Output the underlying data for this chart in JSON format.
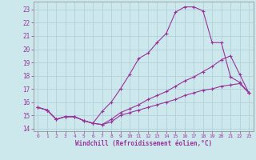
{
  "xlabel": "Windchill (Refroidissement éolien,°C)",
  "bg_color": "#cce8ed",
  "grid_color": "#aacdd5",
  "line_color": "#993399",
  "spine_color": "#888888",
  "xlim": [
    -0.5,
    23.5
  ],
  "ylim": [
    13.8,
    23.6
  ],
  "xticks": [
    0,
    1,
    2,
    3,
    4,
    5,
    6,
    7,
    8,
    9,
    10,
    11,
    12,
    13,
    14,
    15,
    16,
    17,
    18,
    19,
    20,
    21,
    22,
    23
  ],
  "yticks": [
    14,
    15,
    16,
    17,
    18,
    19,
    20,
    21,
    22,
    23
  ],
  "curve1_x": [
    0,
    1,
    2,
    3,
    4,
    5,
    6,
    7,
    8,
    9,
    10,
    11,
    12,
    13,
    14,
    15,
    16,
    17,
    18,
    19,
    20,
    21,
    22,
    23
  ],
  "curve1_y": [
    15.6,
    15.4,
    14.7,
    14.9,
    14.9,
    14.6,
    14.4,
    15.3,
    16.0,
    17.0,
    18.1,
    19.3,
    19.7,
    20.5,
    21.2,
    22.8,
    23.2,
    23.2,
    22.9,
    20.5,
    null,
    null,
    null,
    null
  ],
  "curve1b_x": [
    18,
    19,
    20,
    21,
    22,
    23
  ],
  "curve1b_y": [
    22.9,
    20.5,
    20.5,
    null,
    null,
    null
  ],
  "curve_main_x": [
    0,
    1,
    2,
    3,
    4,
    5,
    6,
    7,
    8,
    9,
    10,
    11,
    12,
    13,
    14,
    15,
    16,
    17,
    18,
    19,
    20,
    21,
    22,
    23
  ],
  "curve_main_y": [
    15.6,
    15.4,
    14.7,
    14.9,
    14.9,
    14.6,
    14.4,
    15.3,
    16.0,
    17.0,
    18.1,
    19.3,
    19.7,
    20.5,
    21.2,
    22.8,
    23.2,
    23.2,
    22.9,
    20.5,
    20.5,
    17.9,
    17.5,
    16.7
  ],
  "curve_low_x": [
    0,
    1,
    2,
    3,
    4,
    5,
    6,
    7,
    8,
    9,
    10,
    11,
    12,
    13,
    14,
    15,
    16,
    17,
    18,
    19,
    20,
    21,
    22,
    23
  ],
  "curve_low_y": [
    15.6,
    15.4,
    14.7,
    14.9,
    14.9,
    14.6,
    14.4,
    14.3,
    14.5,
    15.0,
    15.2,
    15.4,
    15.6,
    15.8,
    16.0,
    16.2,
    16.5,
    16.7,
    16.9,
    17.0,
    17.2,
    17.3,
    17.4,
    16.7
  ],
  "curve_mid_x": [
    0,
    1,
    2,
    3,
    4,
    5,
    6,
    7,
    8,
    9,
    10,
    11,
    12,
    13,
    14,
    15,
    16,
    17,
    18,
    19,
    20,
    21,
    22,
    23
  ],
  "curve_mid_y": [
    15.6,
    15.4,
    14.7,
    14.9,
    14.9,
    14.6,
    14.4,
    14.3,
    14.7,
    15.2,
    15.5,
    15.8,
    16.2,
    16.5,
    16.8,
    17.2,
    17.6,
    17.9,
    18.3,
    18.7,
    19.2,
    19.5,
    18.1,
    16.7
  ]
}
